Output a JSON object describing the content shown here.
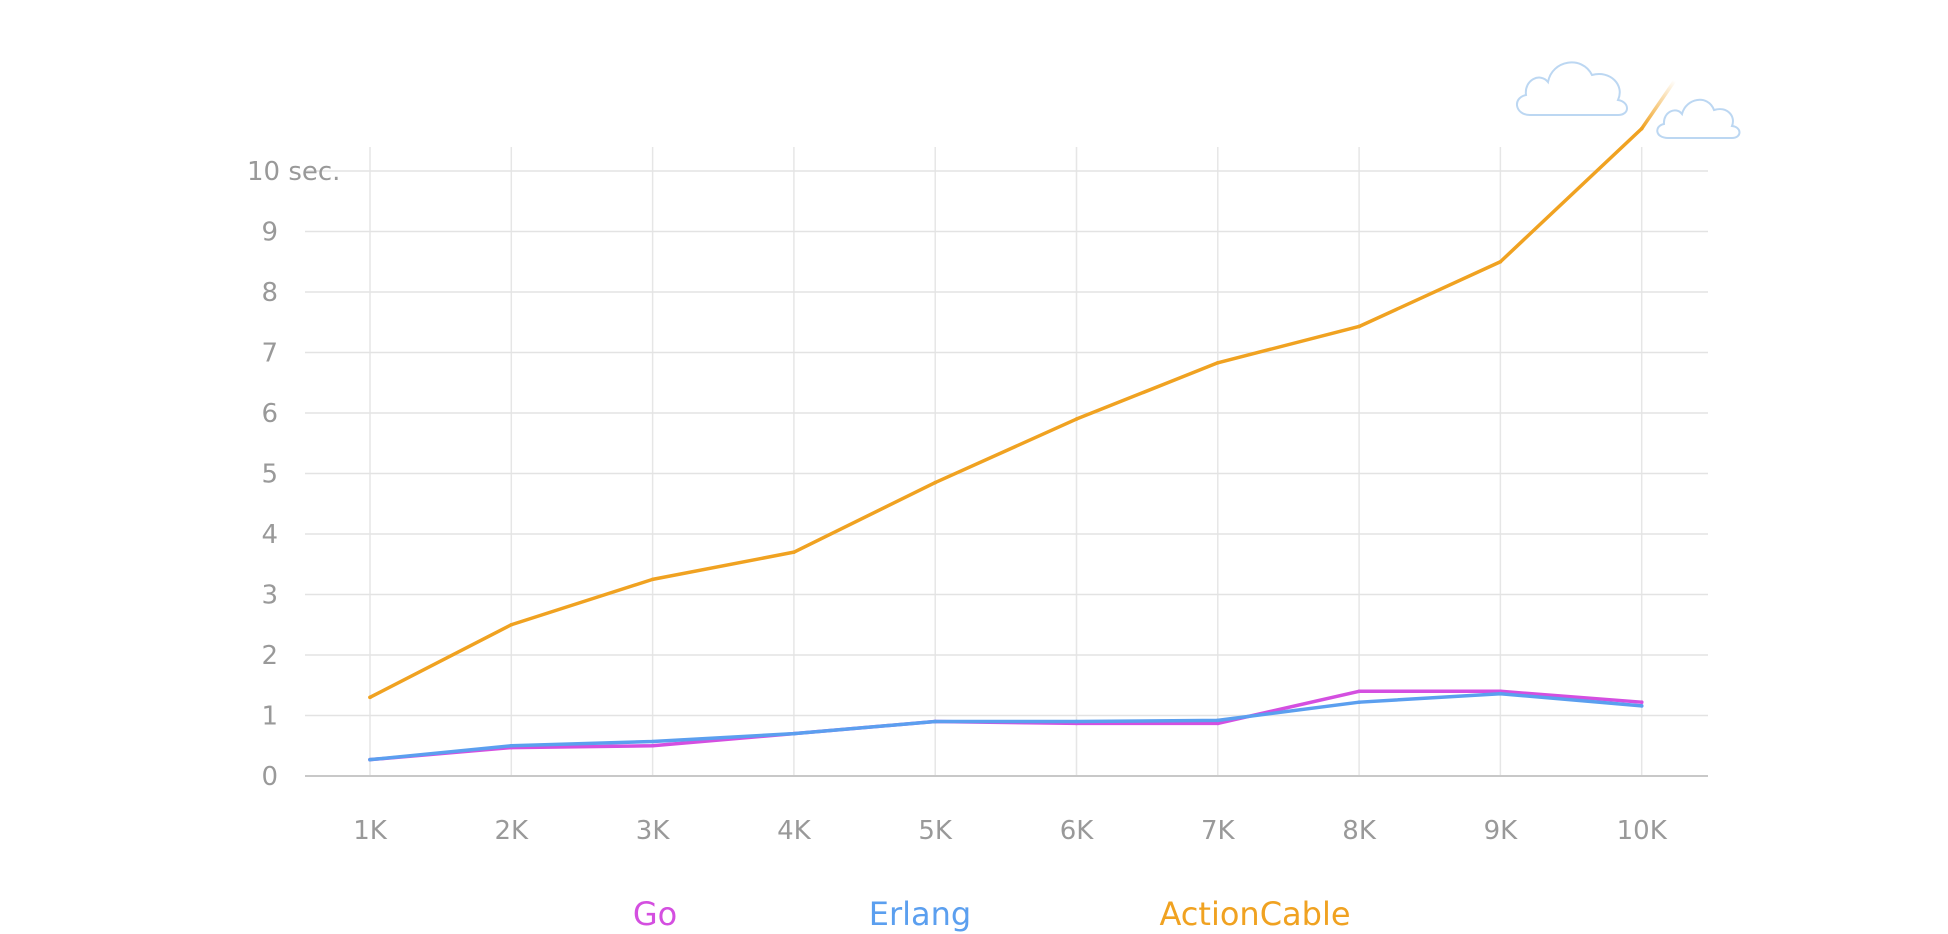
{
  "chart_data": {
    "type": "line",
    "categories": [
      "1K",
      "2K",
      "3K",
      "4K",
      "5K",
      "6K",
      "7K",
      "8K",
      "9K",
      "10K"
    ],
    "y_ticks": [
      "0",
      "1",
      "2",
      "3",
      "4",
      "5",
      "6",
      "7",
      "8",
      "9",
      "10 sec."
    ],
    "ylim": [
      0,
      10
    ],
    "grid": true,
    "legend_position": "bottom",
    "series": [
      {
        "name": "Go",
        "color": "#d44fe0",
        "values": [
          0.27,
          0.47,
          0.5,
          0.7,
          0.9,
          0.87,
          0.87,
          1.4,
          1.4,
          1.22
        ]
      },
      {
        "name": "Erlang",
        "color": "#5b9fef",
        "values": [
          0.27,
          0.5,
          0.57,
          0.7,
          0.9,
          0.9,
          0.92,
          1.22,
          1.36,
          1.16
        ]
      },
      {
        "name": "ActionCable",
        "color": "#f0a221",
        "values": [
          1.3,
          2.5,
          3.25,
          3.7,
          4.85,
          5.9,
          6.83,
          7.43,
          8.5,
          10.7
        ]
      }
    ],
    "decorations": [
      "cloud-icon",
      "cloud-icon"
    ]
  }
}
